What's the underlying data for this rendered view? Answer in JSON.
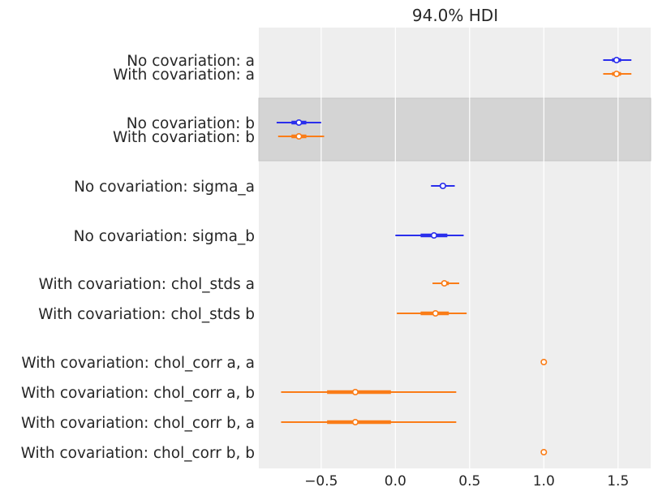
{
  "chart_data": {
    "type": "forest",
    "title": "94.0% HDI",
    "xlim": [
      -0.92,
      1.72
    ],
    "xticks": [
      -0.5,
      0.0,
      0.5,
      1.0,
      1.5
    ],
    "xtick_labels": [
      "−0.5",
      "0.0",
      "0.5",
      "1.0",
      "1.5"
    ],
    "grid": true,
    "colors": {
      "no_covariation": "#2a2eec",
      "with_covariation": "#fa7c17",
      "plot_background": "#eeeeee",
      "highlight_band": "#d4d4d4",
      "grid": "#ffffff"
    },
    "rows": [
      {
        "label": "No covariation: a",
        "series": "no_covariation",
        "mean": 1.49,
        "hdi_low": 1.4,
        "hdi_high": 1.59,
        "iqr_low": 1.46,
        "iqr_high": 1.52
      },
      {
        "label": "With covariation: a",
        "series": "with_covariation",
        "mean": 1.49,
        "hdi_low": 1.4,
        "hdi_high": 1.59,
        "iqr_low": 1.46,
        "iqr_high": 1.52
      },
      {
        "label": "No covariation: b",
        "series": "no_covariation",
        "mean": -0.65,
        "hdi_low": -0.8,
        "hdi_high": -0.5,
        "iqr_low": -0.7,
        "iqr_high": -0.6,
        "highlight": true
      },
      {
        "label": "With covariation: b",
        "series": "with_covariation",
        "mean": -0.65,
        "hdi_low": -0.79,
        "hdi_high": -0.48,
        "iqr_low": -0.7,
        "iqr_high": -0.6,
        "highlight": true
      },
      {
        "label": "No covariation: sigma_a",
        "series": "no_covariation",
        "mean": 0.32,
        "hdi_low": 0.24,
        "hdi_high": 0.4,
        "iqr_low": 0.3,
        "iqr_high": 0.34
      },
      {
        "label": "No covariation: sigma_b",
        "series": "no_covariation",
        "mean": 0.26,
        "hdi_low": 0.0,
        "hdi_high": 0.46,
        "iqr_low": 0.17,
        "iqr_high": 0.35
      },
      {
        "label": "With covariation: chol_stds a",
        "series": "with_covariation",
        "mean": 0.33,
        "hdi_low": 0.25,
        "hdi_high": 0.43,
        "iqr_low": 0.31,
        "iqr_high": 0.36
      },
      {
        "label": "With covariation: chol_stds b",
        "series": "with_covariation",
        "mean": 0.27,
        "hdi_low": 0.01,
        "hdi_high": 0.48,
        "iqr_low": 0.17,
        "iqr_high": 0.36
      },
      {
        "label": "With covariation: chol_corr a, a",
        "series": "with_covariation",
        "mean": 1.0,
        "hdi_low": 1.0,
        "hdi_high": 1.0,
        "iqr_low": 1.0,
        "iqr_high": 1.0
      },
      {
        "label": "With covariation: chol_corr a, b",
        "series": "with_covariation",
        "mean": -0.27,
        "hdi_low": -0.77,
        "hdi_high": 0.41,
        "iqr_low": -0.46,
        "iqr_high": -0.03
      },
      {
        "label": "With covariation: chol_corr b, a",
        "series": "with_covariation",
        "mean": -0.27,
        "hdi_low": -0.77,
        "hdi_high": 0.41,
        "iqr_low": -0.46,
        "iqr_high": -0.03
      },
      {
        "label": "With covariation: chol_corr b, b",
        "series": "with_covariation",
        "mean": 1.0,
        "hdi_low": 1.0,
        "hdi_high": 1.0,
        "iqr_low": 1.0,
        "iqr_high": 1.0
      }
    ]
  }
}
